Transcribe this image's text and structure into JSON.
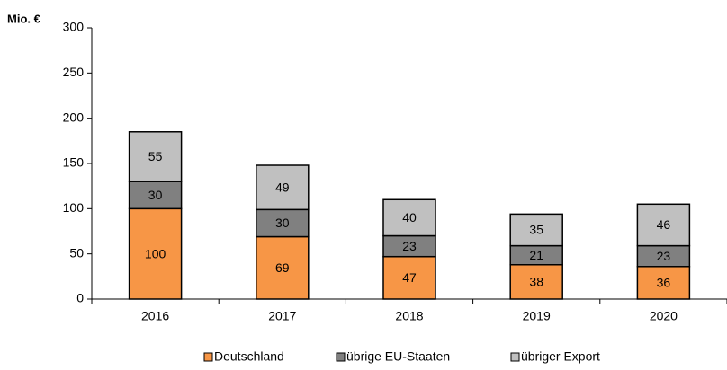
{
  "chart_data": {
    "type": "stacked_bar",
    "y_axis_label": "Mio. €",
    "categories": [
      "2016",
      "2017",
      "2018",
      "2019",
      "2020"
    ],
    "series": [
      {
        "name": "Deutschland",
        "color": "#f79646",
        "values": [
          100,
          69,
          47,
          38,
          36
        ]
      },
      {
        "name": "übrige EU-Staaten",
        "color": "#808080",
        "values": [
          30,
          30,
          23,
          21,
          23
        ]
      },
      {
        "name": "übriger Export",
        "color": "#c0c0c0",
        "values": [
          55,
          49,
          40,
          35,
          46
        ]
      }
    ],
    "ylim": [
      0,
      300
    ],
    "yticks": [
      0,
      50,
      100,
      150,
      200,
      250,
      300
    ],
    "grid": false,
    "legend": "bottom"
  }
}
